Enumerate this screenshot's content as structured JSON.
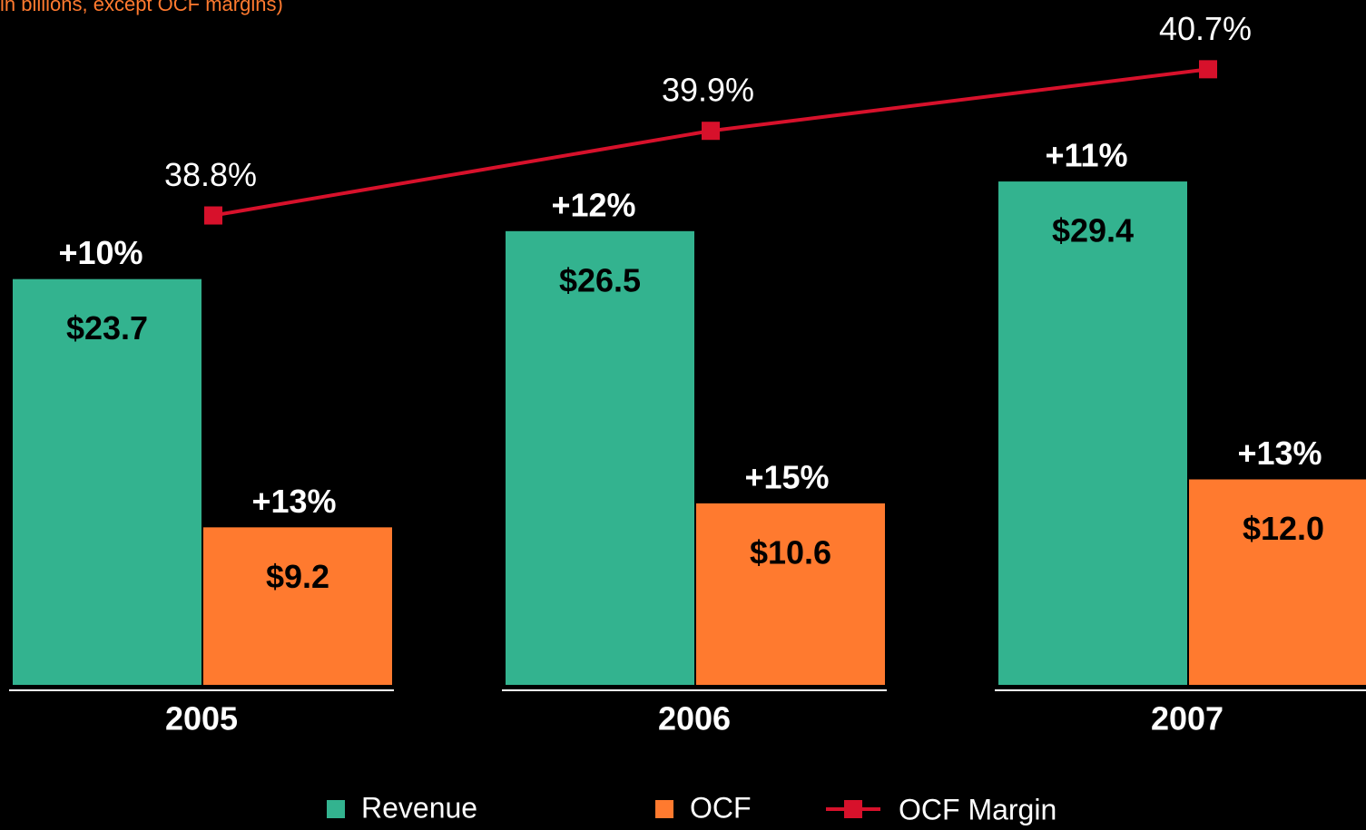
{
  "chart_data": {
    "type": "bar-line",
    "subtitle": "in billions, except OCF margins)",
    "categories": [
      "2005",
      "2006",
      "2007"
    ],
    "ylim": [
      0,
      40
    ],
    "y2lim": [
      32.7,
      41.6
    ],
    "series": [
      {
        "name": "Revenue",
        "color": "#33b38f",
        "values": [
          23.7,
          26.5,
          29.4
        ],
        "value_labels": [
          "$23.7",
          "$26.5",
          "$29.4"
        ],
        "growth_labels": [
          "+10%",
          "+12%",
          "+11%"
        ]
      },
      {
        "name": "OCF",
        "color": "#ff7a2f",
        "values": [
          9.2,
          10.6,
          12.0
        ],
        "value_labels": [
          "$9.2",
          "$10.6",
          "$12.0"
        ],
        "growth_labels": [
          "+13%",
          "+15%",
          "+13%"
        ]
      },
      {
        "name": "OCF Margin",
        "color": "#d7112b",
        "type": "line",
        "axis": "y2",
        "values": [
          38.8,
          39.9,
          40.7
        ],
        "value_labels": [
          "38.8%",
          "39.9%",
          "40.7%"
        ]
      }
    ]
  }
}
